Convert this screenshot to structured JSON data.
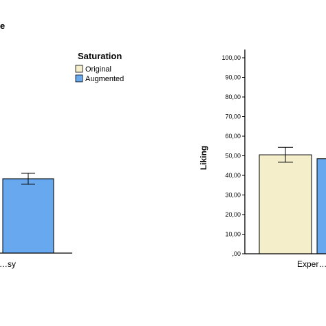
{
  "header": {
    "title_fragment": "e"
  },
  "legend": {
    "title": "Saturation",
    "items": [
      {
        "label": "Original",
        "color": "#f5eecb"
      },
      {
        "label": "Augmented",
        "color": "#68a8ee"
      }
    ]
  },
  "chart_data": [
    {
      "type": "bar",
      "categories": [
        "…sy"
      ],
      "series": [
        {
          "name": "Augmented",
          "values": [
            47.5
          ],
          "error": [
            3.5
          ]
        }
      ],
      "ylim": [
        0,
        110
      ],
      "ylabel": ""
    },
    {
      "type": "bar",
      "categories": [
        "Exper…"
      ],
      "series": [
        {
          "name": "Original",
          "values": [
            50.5
          ],
          "error": [
            3.8
          ]
        },
        {
          "name": "Augmented",
          "values": [
            48.5
          ],
          "error": [
            0
          ]
        }
      ],
      "ylim": [
        0,
        100
      ],
      "yticks": [
        0,
        10,
        20,
        30,
        40,
        50,
        60,
        70,
        80,
        90,
        100
      ],
      "ytick_labels": [
        ",00",
        "10,00",
        "20,00",
        "30,00",
        "40,00",
        "50,00",
        "60,00",
        "70,00",
        "80,00",
        "90,00",
        "100,00"
      ],
      "ylabel": "Liking",
      "grid": false
    }
  ]
}
